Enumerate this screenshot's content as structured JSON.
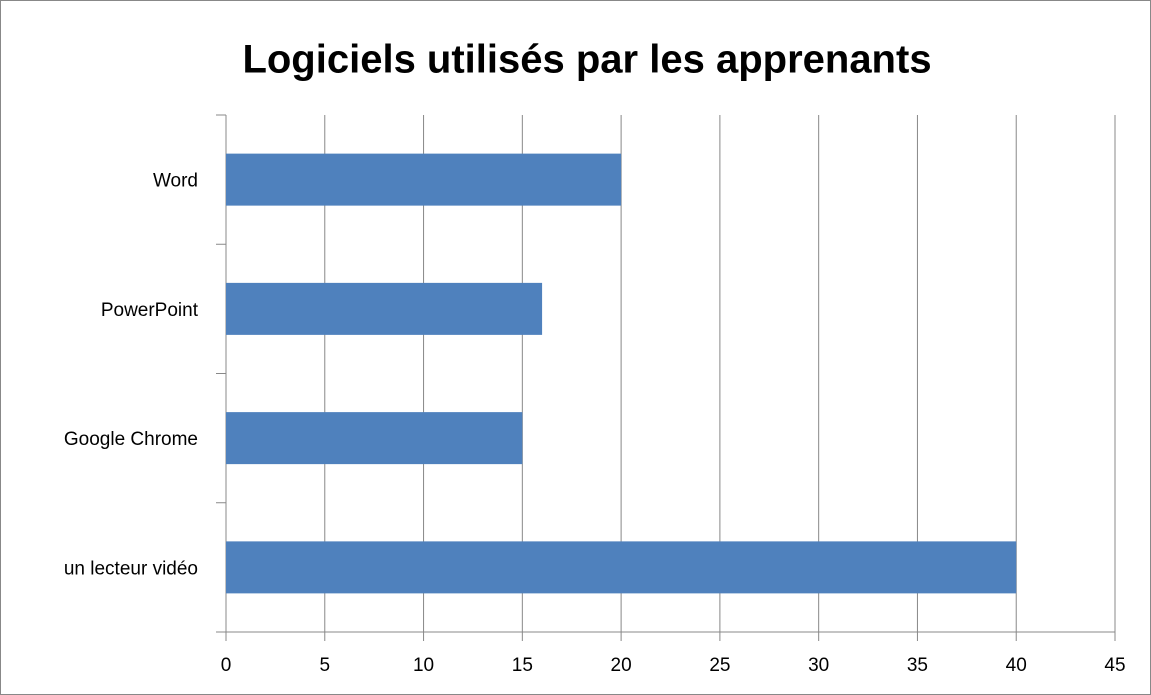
{
  "chart_data": {
    "type": "bar",
    "orientation": "horizontal",
    "title": "Logiciels utilisés par les apprenants",
    "categories": [
      "Word",
      "PowerPoint",
      "Google Chrome",
      "un lecteur vidéo"
    ],
    "values": [
      20,
      16,
      15,
      40
    ],
    "color": "#4f81bd",
    "xlim": [
      0,
      45
    ],
    "xticks": [
      0,
      5,
      10,
      15,
      20,
      25,
      30,
      35,
      40,
      45
    ],
    "grid": true
  }
}
